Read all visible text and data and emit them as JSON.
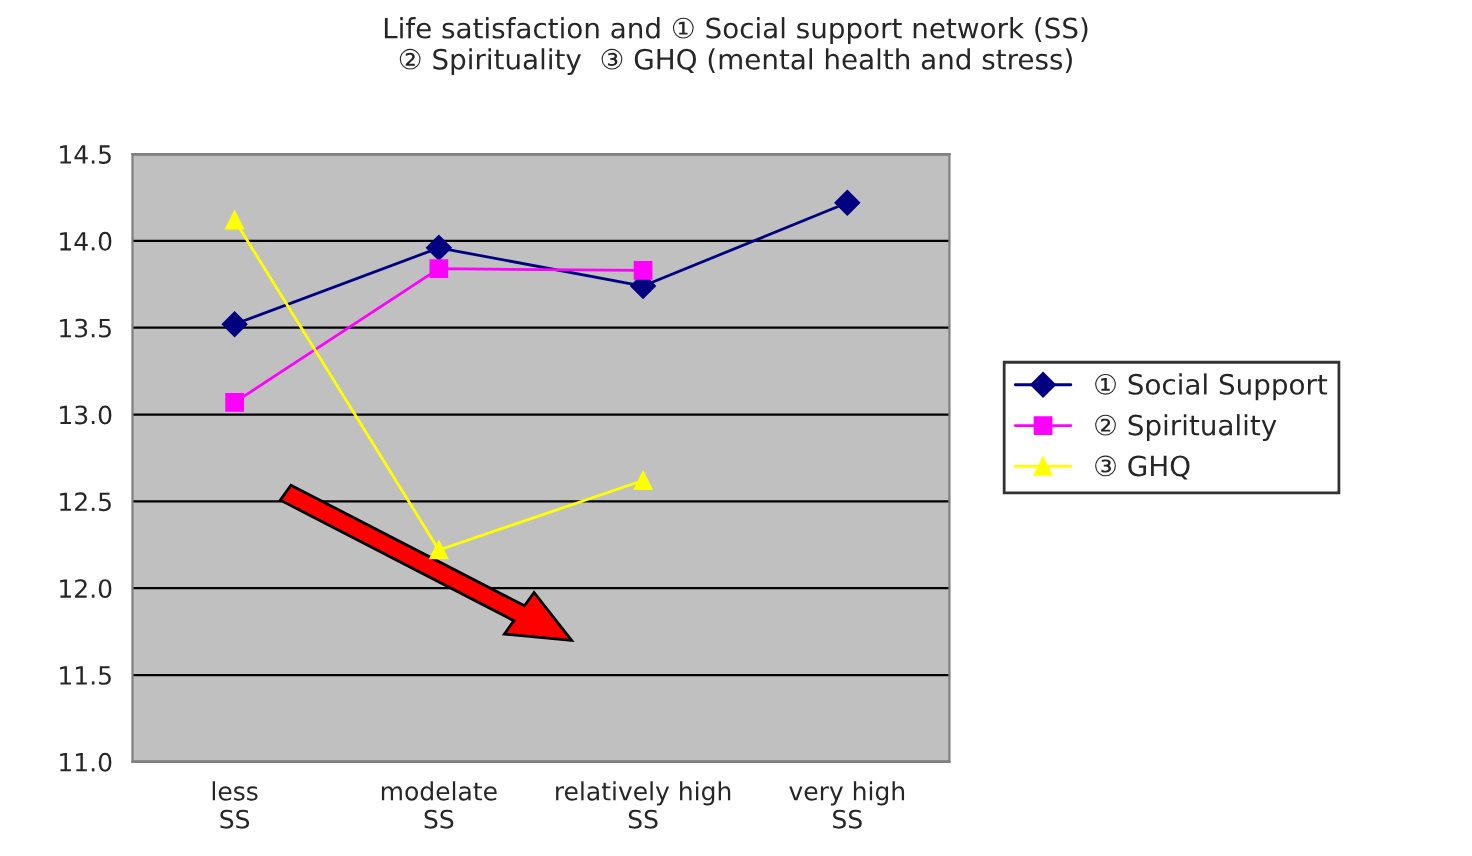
{
  "chart_data": {
    "type": "line",
    "title": "Life satisfaction and ① Social support network (SS)\n② Spirituality  ③ GHQ (mental health and stress)",
    "categories": [
      "less SS",
      "modelate SS",
      "relatively high SS",
      "very high SS"
    ],
    "series": [
      {
        "name": "① Social Support",
        "color": "#000080",
        "marker": "diamond",
        "values": [
          13.52,
          13.96,
          13.74,
          14.22
        ]
      },
      {
        "name": "② Spirituality",
        "color": "#ff00ff",
        "marker": "square",
        "values": [
          13.07,
          13.84,
          13.83,
          null
        ]
      },
      {
        "name": "③ GHQ",
        "color": "#ffff00",
        "marker": "triangle",
        "values": [
          14.12,
          12.22,
          12.62,
          null
        ]
      }
    ],
    "ylim": [
      11.0,
      14.5
    ],
    "yticks": [
      {
        "value": 11.0,
        "label": "11.0"
      },
      {
        "value": 11.5,
        "label": "11.5"
      },
      {
        "value": 12.0,
        "label": "12.0"
      },
      {
        "value": 12.5,
        "label": "12.5"
      },
      {
        "value": 13.0,
        "label": "13.0"
      },
      {
        "value": 13.5,
        "label": "13.5"
      },
      {
        "value": 14.0,
        "label": "14.0"
      },
      {
        "value": 14.5,
        "label": "14.5"
      }
    ],
    "grid": "y",
    "legend": "right",
    "line_style": "solid"
  }
}
